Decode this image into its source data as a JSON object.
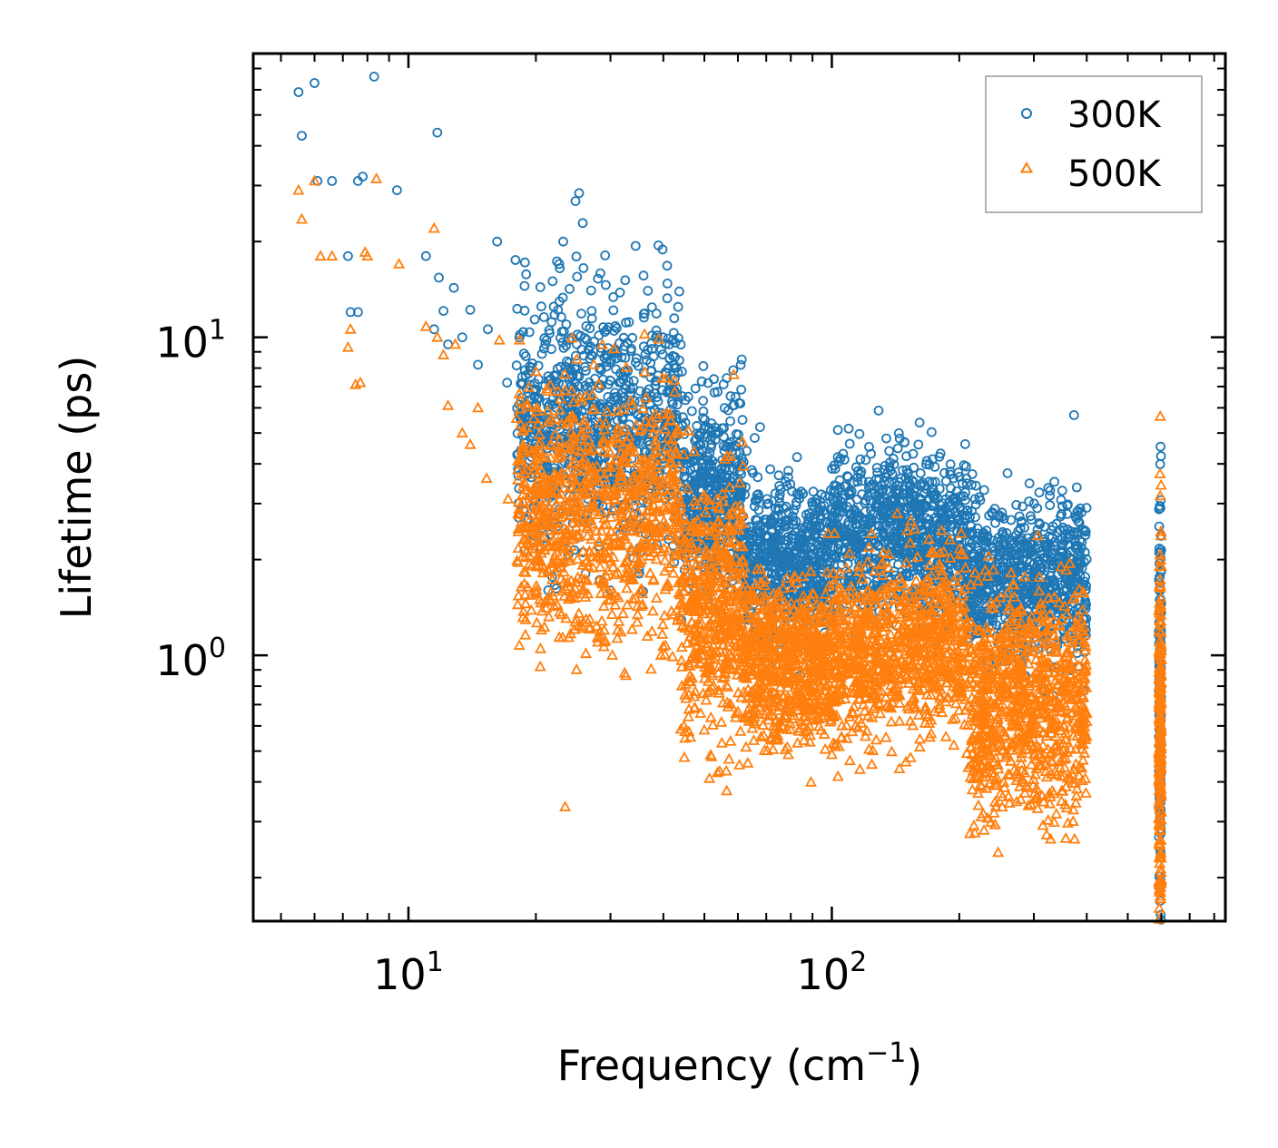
{
  "chart_data": {
    "type": "scatter",
    "title": "",
    "xlabel": "Frequency (cm",
    "xlabel_superscript": "−1",
    "xlabel_suffix": ")",
    "ylabel": "Lifetime (ps)",
    "xscale": "log",
    "yscale": "log",
    "xlim": [
      4.3,
      850
    ],
    "ylim": [
      0.146,
      78
    ],
    "x_ticks": [
      {
        "value": 10,
        "base": "10",
        "exp": "1"
      },
      {
        "value": 100,
        "base": "10",
        "exp": "2"
      }
    ],
    "y_ticks": [
      {
        "value": 1,
        "base": "10",
        "exp": "0"
      },
      {
        "value": 10,
        "base": "10",
        "exp": "1"
      }
    ],
    "legend_position": "top-right",
    "series": [
      {
        "name": "300K",
        "marker": "circle",
        "color": "#1f77b4",
        "points": [
          [
            5.5,
            59
          ],
          [
            5.6,
            43
          ],
          [
            6.0,
            63
          ],
          [
            6.1,
            31
          ],
          [
            6.6,
            31
          ],
          [
            7.2,
            18
          ],
          [
            7.3,
            12
          ],
          [
            7.6,
            12
          ],
          [
            7.6,
            31
          ],
          [
            7.8,
            32
          ],
          [
            8.3,
            66
          ],
          [
            9.4,
            29
          ],
          [
            11.0,
            18
          ],
          [
            11.5,
            10.6
          ],
          [
            11.7,
            44
          ],
          [
            11.8,
            15.4
          ],
          [
            12.1,
            12.1
          ],
          [
            12.4,
            9.5
          ],
          [
            12.8,
            14.3
          ],
          [
            13.4,
            10
          ],
          [
            14.0,
            12.2
          ],
          [
            14.6,
            8.2
          ],
          [
            15.4,
            10.6
          ],
          [
            16.2,
            20
          ],
          [
            17.1,
            7.2
          ],
          [
            17.9,
            17.5
          ],
          [
            18.8,
            14.5
          ],
          [
            19.7,
            5.8
          ],
          [
            20.6,
            12.5
          ],
          [
            21.9,
            15
          ],
          [
            22.7,
            17
          ],
          [
            23.2,
            20
          ],
          [
            24.8,
            26.8
          ],
          [
            25.3,
            28.4
          ],
          [
            25.9,
            16.5
          ],
          [
            27.1,
            12.1
          ],
          [
            28.4,
            15.9
          ],
          [
            29.1,
            10.4
          ],
          [
            30.0,
            1.6
          ],
          [
            33.6,
            9.2
          ],
          [
            38.5,
            10.5
          ],
          [
            45.8,
            6.5
          ],
          [
            62.0,
            2.3
          ],
          [
            84.8,
            2.4
          ],
          [
            110.1,
            3.2
          ],
          [
            127.9,
            3.0
          ],
          [
            155.6,
            4.3
          ],
          [
            181.3,
            2.8
          ],
          [
            248.0,
            2.2
          ],
          [
            300.2,
            3.0
          ],
          [
            366.0,
            2.4
          ],
          [
            392.0,
            1.3
          ],
          [
            595.0,
            2.9
          ]
        ],
        "bands": [
          {
            "x_min": 18,
            "x_max": 44,
            "y_center": 5.2,
            "spread": 0.55,
            "count": 900
          },
          {
            "x_min": 44,
            "x_max": 62,
            "y_center": 3.3,
            "spread": 0.45,
            "count": 450
          },
          {
            "x_min": 62,
            "x_max": 100,
            "y_center": 1.9,
            "spread": 0.35,
            "count": 650
          },
          {
            "x_min": 100,
            "x_max": 210,
            "y_center": 2.4,
            "spread": 0.35,
            "count": 900
          },
          {
            "x_min": 210,
            "x_max": 400,
            "y_center": 1.7,
            "spread": 0.35,
            "count": 800
          },
          {
            "x_min": 592,
            "x_max": 600,
            "y_center": 0.75,
            "spread": 0.9,
            "count": 160
          }
        ]
      },
      {
        "name": "500K",
        "marker": "triangle",
        "color": "#ff7f0e",
        "points": [
          [
            5.5,
            29
          ],
          [
            5.6,
            23.5
          ],
          [
            6.0,
            31
          ],
          [
            6.2,
            18
          ],
          [
            6.6,
            18
          ],
          [
            7.2,
            9.3
          ],
          [
            7.3,
            10.6
          ],
          [
            7.5,
            7.1
          ],
          [
            7.7,
            7.2
          ],
          [
            7.9,
            18.5
          ],
          [
            8.0,
            18
          ],
          [
            8.4,
            31.5
          ],
          [
            9.5,
            17
          ],
          [
            11.0,
            10.8
          ],
          [
            11.5,
            22
          ],
          [
            11.7,
            10
          ],
          [
            12.1,
            8.8
          ],
          [
            12.4,
            6.1
          ],
          [
            12.9,
            9.5
          ],
          [
            13.4,
            5
          ],
          [
            14.0,
            4.6
          ],
          [
            14.6,
            6
          ],
          [
            15.3,
            3.6
          ],
          [
            16.4,
            9.8
          ],
          [
            17.2,
            3.1
          ],
          [
            18.3,
            9.8
          ],
          [
            19.0,
            5.2
          ],
          [
            20.1,
            6
          ],
          [
            21.1,
            3.6
          ],
          [
            22.0,
            2.3
          ],
          [
            23.9,
            1.5
          ],
          [
            25.6,
            5
          ],
          [
            26.8,
            1.3
          ],
          [
            27.4,
            8.2
          ],
          [
            28.0,
            1.1
          ],
          [
            29.0,
            1.2
          ],
          [
            30.3,
            1.0
          ],
          [
            31.2,
            1.2
          ],
          [
            32.4,
            0.88
          ],
          [
            51.4,
            0.41
          ],
          [
            52.0,
            0.48
          ],
          [
            55.0,
            0.53
          ],
          [
            247.0,
            0.24
          ],
          [
            593.0,
            0.148
          ]
        ],
        "bands": [
          {
            "x_min": 18,
            "x_max": 44,
            "y_center": 2.8,
            "spread": 0.55,
            "count": 900
          },
          {
            "x_min": 44,
            "x_max": 62,
            "y_center": 1.4,
            "spread": 0.55,
            "count": 500
          },
          {
            "x_min": 62,
            "x_max": 100,
            "y_center": 0.95,
            "spread": 0.35,
            "count": 700
          },
          {
            "x_min": 100,
            "x_max": 210,
            "y_center": 1.05,
            "spread": 0.38,
            "count": 900
          },
          {
            "x_min": 210,
            "x_max": 400,
            "y_center": 0.7,
            "spread": 0.5,
            "count": 900
          },
          {
            "x_min": 592,
            "x_max": 600,
            "y_center": 0.45,
            "spread": 1.0,
            "count": 200
          }
        ]
      }
    ]
  }
}
